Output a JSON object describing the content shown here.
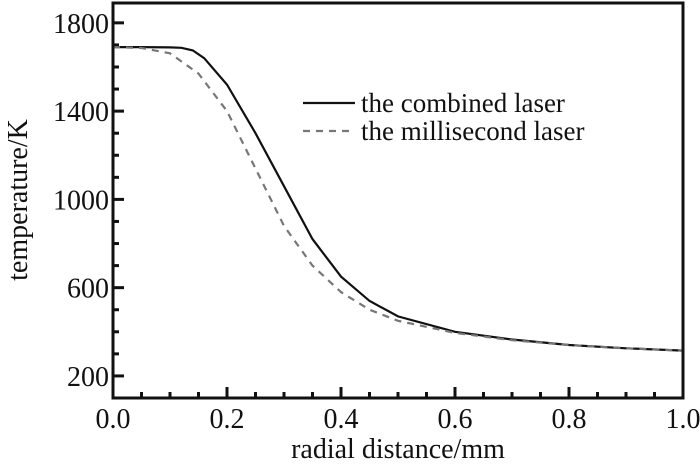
{
  "chart_data": {
    "type": "line",
    "title": "",
    "xlabel": "radial distance/mm",
    "ylabel": "temperature/K",
    "xlim": [
      0.0,
      1.0
    ],
    "ylim": [
      100,
      1890
    ],
    "xticks": [
      "0.0",
      "0.2",
      "0.4",
      "0.6",
      "0.8",
      "1.0"
    ],
    "xtick_values": [
      0.0,
      0.2,
      0.4,
      0.6,
      0.8,
      1.0
    ],
    "yticks": [
      "200",
      "600",
      "1000",
      "1400",
      "1800"
    ],
    "ytick_values": [
      200,
      600,
      1000,
      1400,
      1800
    ],
    "grid": false,
    "legend_position": "top-right",
    "series": [
      {
        "name": "the combined laser",
        "color": "#111111",
        "style": "solid",
        "x": [
          0,
          0.05,
          0.1,
          0.12,
          0.14,
          0.16,
          0.2,
          0.25,
          0.3,
          0.35,
          0.4,
          0.45,
          0.5,
          0.6,
          0.7,
          0.8,
          0.9,
          1.0
        ],
        "y": [
          1690,
          1690,
          1689,
          1687,
          1675,
          1640,
          1520,
          1300,
          1060,
          820,
          650,
          540,
          470,
          400,
          365,
          340,
          325,
          315
        ]
      },
      {
        "name": "the millisecond laser",
        "color": "#777777",
        "style": "dashed",
        "x": [
          0,
          0.05,
          0.1,
          0.15,
          0.2,
          0.25,
          0.3,
          0.35,
          0.4,
          0.45,
          0.5,
          0.6,
          0.7,
          0.8,
          0.9,
          1.0
        ],
        "y": [
          1690,
          1686,
          1662,
          1570,
          1400,
          1140,
          880,
          700,
          580,
          500,
          450,
          395,
          362,
          340,
          325,
          315
        ]
      }
    ]
  }
}
